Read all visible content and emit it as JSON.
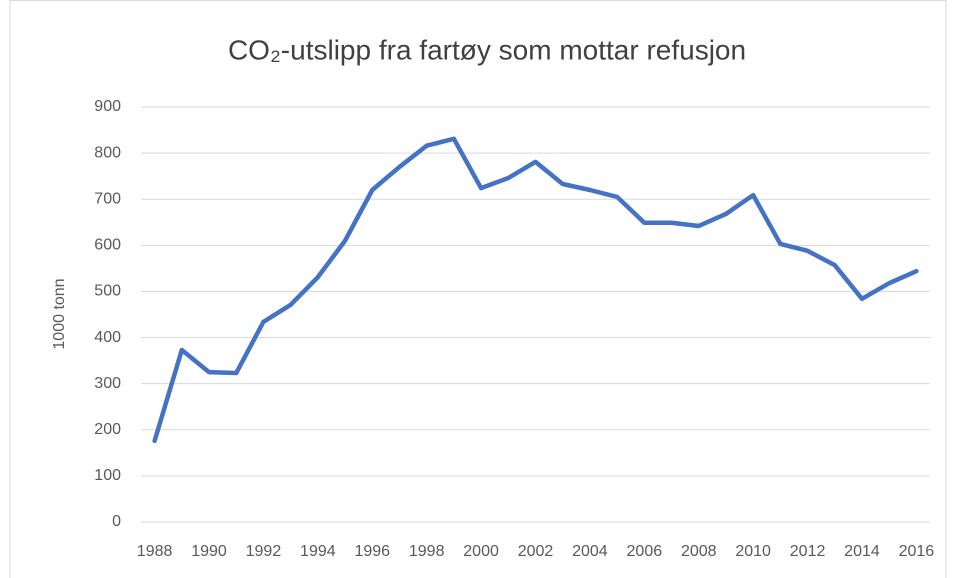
{
  "chart_data": {
    "type": "line",
    "title": "CO₂-utslipp fra fartøy som mottar refusjon",
    "y_label": "1000 tonn",
    "categories": [
      "1988",
      null,
      "1990",
      null,
      "1992",
      null,
      "1994",
      null,
      "1996",
      null,
      "1998",
      null,
      "2000",
      null,
      "2002",
      null,
      "2004",
      null,
      "2006",
      null,
      "2008",
      null,
      "2010",
      null,
      "2012",
      null,
      "2014",
      null,
      "2016"
    ],
    "series": [
      {
        "name": "CO₂-utslipp",
        "color": "#4472c4",
        "values": [
          176,
          373,
          325,
          323,
          434,
          471,
          531,
          610,
          720,
          770,
          816,
          831,
          724,
          746,
          781,
          733,
          720,
          705,
          649,
          649,
          642,
          668,
          709,
          603,
          588,
          557,
          484,
          518,
          544
        ]
      }
    ],
    "ylim": [
      0,
      900
    ],
    "yticks": [
      0,
      100,
      200,
      300,
      400,
      500,
      600,
      700,
      800,
      900
    ],
    "grid": true
  }
}
